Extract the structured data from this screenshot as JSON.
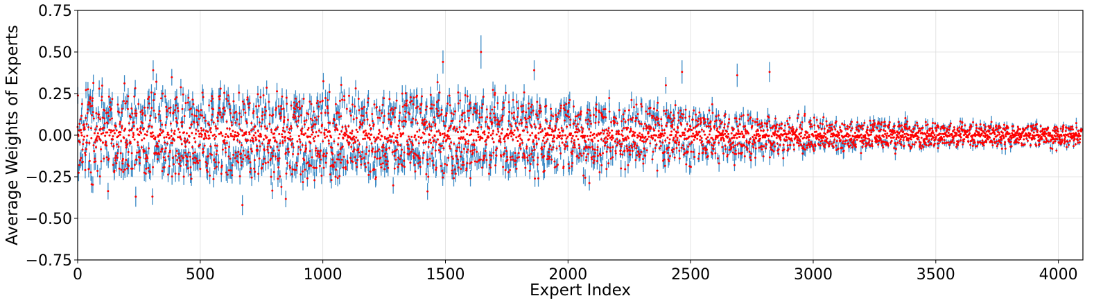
{
  "chart_data": {
    "type": "scatter",
    "title": "",
    "xlabel": "Expert Index",
    "ylabel": "Average Weights of Experts",
    "xlim": [
      0,
      4100
    ],
    "ylim": [
      -0.75,
      0.75
    ],
    "xticks": [
      "0",
      "500",
      "1000",
      "1500",
      "2000",
      "2500",
      "3000",
      "3500",
      "4000"
    ],
    "xtick_values": [
      0,
      500,
      1000,
      1500,
      2000,
      2500,
      3000,
      3500,
      4000
    ],
    "yticks": [
      "0.75",
      "0.50",
      "0.25",
      "0.00",
      "−0.25",
      "−0.50",
      "−0.75"
    ],
    "ytick_values": [
      0.75,
      0.5,
      0.25,
      0.0,
      -0.25,
      -0.5,
      -0.75
    ],
    "grid": true,
    "n_points": 4096,
    "series": [
      {
        "kind": "mean-marker",
        "color": "#ff0000"
      },
      {
        "kind": "error-bar",
        "color": "#3b8bc6"
      }
    ],
    "notable_points": [
      {
        "x": 237,
        "y": -0.37,
        "err": 0.06
      },
      {
        "x": 308,
        "y": 0.39,
        "err": 0.06
      },
      {
        "x": 672,
        "y": -0.42,
        "err": 0.06
      },
      {
        "x": 1490,
        "y": 0.44,
        "err": 0.07
      },
      {
        "x": 1645,
        "y": 0.5,
        "err": 0.1
      },
      {
        "x": 2690,
        "y": 0.36,
        "err": 0.07
      },
      {
        "x": 2822,
        "y": 0.38,
        "err": 0.06
      },
      {
        "x": 1862,
        "y": 0.39,
        "err": 0.06
      },
      {
        "x": 2465,
        "y": 0.38,
        "err": 0.07
      }
    ],
    "envelope": [
      {
        "x": 0,
        "mean_abs": 0.13
      },
      {
        "x": 500,
        "mean_abs": 0.13
      },
      {
        "x": 1000,
        "mean_abs": 0.13
      },
      {
        "x": 1500,
        "mean_abs": 0.12
      },
      {
        "x": 2000,
        "mean_abs": 0.1
      },
      {
        "x": 2500,
        "mean_abs": 0.08
      },
      {
        "x": 3000,
        "mean_abs": 0.05
      },
      {
        "x": 3500,
        "mean_abs": 0.035
      },
      {
        "x": 4096,
        "mean_abs": 0.03
      }
    ]
  }
}
